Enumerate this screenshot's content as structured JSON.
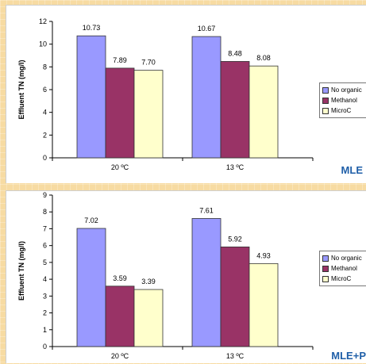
{
  "colors": {
    "series": [
      "#9999ff",
      "#993366",
      "#ffffcc"
    ]
  },
  "charts": [
    {
      "caption": "MLE",
      "legend": [
        "No organic",
        "Methanol",
        "MicroC"
      ]
    },
    {
      "caption": "MLE+P",
      "legend": [
        "No organic",
        "Methanol",
        "MicroC"
      ]
    }
  ],
  "chart_data": [
    {
      "type": "bar",
      "ylabel": "Effluent TN (mg/l)",
      "ylim": [
        0,
        12
      ],
      "yticks": [
        "0",
        "2",
        "4",
        "6",
        "8",
        "10",
        "12"
      ],
      "categories": [
        "20 ºC",
        "13 ºC"
      ],
      "series": [
        {
          "name": "No organic",
          "values": [
            10.73,
            10.67
          ],
          "labels": [
            "10.73",
            "10.67"
          ]
        },
        {
          "name": "Methanol",
          "values": [
            7.89,
            8.48
          ],
          "labels": [
            "7.89",
            "8.48"
          ]
        },
        {
          "name": "MicroC",
          "values": [
            7.7,
            8.08
          ],
          "labels": [
            "7.70",
            "8.08"
          ]
        }
      ],
      "legend_position": "right"
    },
    {
      "type": "bar",
      "ylabel": "Effluent TN (mg/l)",
      "ylim": [
        0,
        9
      ],
      "yticks": [
        "0",
        "1",
        "2",
        "3",
        "4",
        "5",
        "6",
        "7",
        "8",
        "9"
      ],
      "categories": [
        "20 ºC",
        "13 ºC"
      ],
      "series": [
        {
          "name": "No organic",
          "values": [
            7.02,
            7.61
          ],
          "labels": [
            "7.02",
            "7.61"
          ]
        },
        {
          "name": "Methanol",
          "values": [
            3.59,
            5.92
          ],
          "labels": [
            "3.59",
            "5.92"
          ]
        },
        {
          "name": "MicroC",
          "values": [
            3.39,
            4.93
          ],
          "labels": [
            "3.39",
            "4.93"
          ]
        }
      ],
      "legend_position": "right"
    }
  ]
}
